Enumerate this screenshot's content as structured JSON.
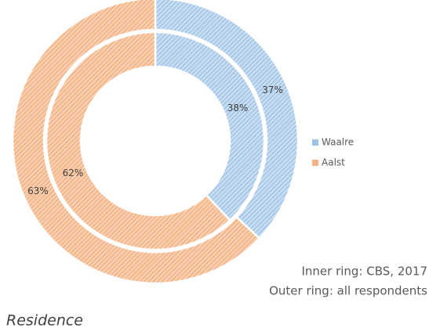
{
  "chart_data": {
    "type": "donut",
    "categories": [
      "Waalre",
      "Aalst"
    ],
    "colors": [
      "#9dc3e6",
      "#f4b183"
    ],
    "series": [
      {
        "values": [
          38,
          62
        ],
        "value_labels": [
          "38%",
          "62%"
        ]
      },
      {
        "values": [
          37,
          63
        ],
        "value_labels": [
          "37%",
          "63%"
        ]
      }
    ],
    "annotations": [
      "Inner ring: CBS, 2017",
      "Outer ring: all respondents"
    ],
    "title": "Residence",
    "legend": "right"
  }
}
